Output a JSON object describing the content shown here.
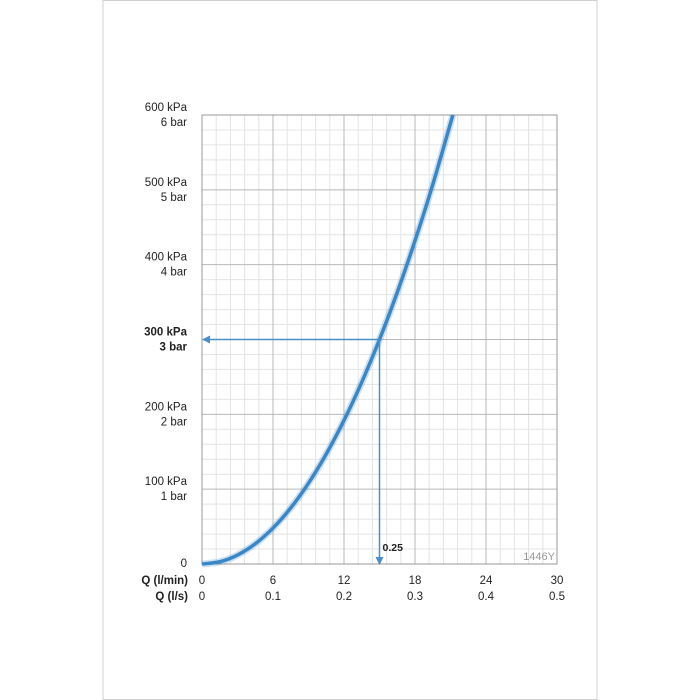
{
  "chart_data": {
    "type": "line",
    "x_label": "Q (l/min)",
    "x2_label": "Q (l/s)",
    "x": [
      0,
      1.5,
      3,
      4.5,
      6,
      7.5,
      9,
      10.5,
      12,
      13.5,
      15,
      16.5,
      18,
      19.5,
      21.2
    ],
    "series": [
      {
        "color": "#3a87c8",
        "values": [
          0,
          3,
          12,
          27,
          48,
          75,
          108,
          147,
          192,
          243,
          300,
          363,
          432,
          507,
          600
        ]
      }
    ],
    "xlim": [
      0,
      30
    ],
    "xticks": [
      0,
      6,
      12,
      18,
      24,
      30
    ],
    "x2lim": [
      0,
      0.5
    ],
    "x2ticks": [
      0,
      0.1,
      0.2,
      0.3,
      0.4,
      0.5
    ],
    "ylim": [
      0,
      600
    ],
    "yticks": [
      0,
      {
        "value": 100,
        "label": "100 kPa"
      },
      {
        "value": 200,
        "label": "200 kPa"
      },
      {
        "value": 300,
        "label": "300 kPa"
      },
      {
        "value": 400,
        "label": "400 kPa"
      },
      {
        "value": 500,
        "label": "500 kPa"
      },
      {
        "value": 600,
        "label": "600 kPa"
      }
    ],
    "y2lim": [
      0,
      6
    ],
    "y2ticks": [
      {
        "value": 1,
        "label": "1 bar"
      },
      {
        "value": 2,
        "label": "2 bar"
      },
      {
        "value": 3,
        "label": "3 bar"
      },
      {
        "value": 4,
        "label": "4 bar"
      },
      {
        "value": 5,
        "label": "5 bar"
      },
      {
        "value": 6,
        "label": "6 bar"
      }
    ],
    "grid": true,
    "minor_divisions": 5,
    "highlight": {
      "x2": 0.25,
      "y": 300,
      "color": "#4a8fc9"
    },
    "code": "1446Y"
  }
}
